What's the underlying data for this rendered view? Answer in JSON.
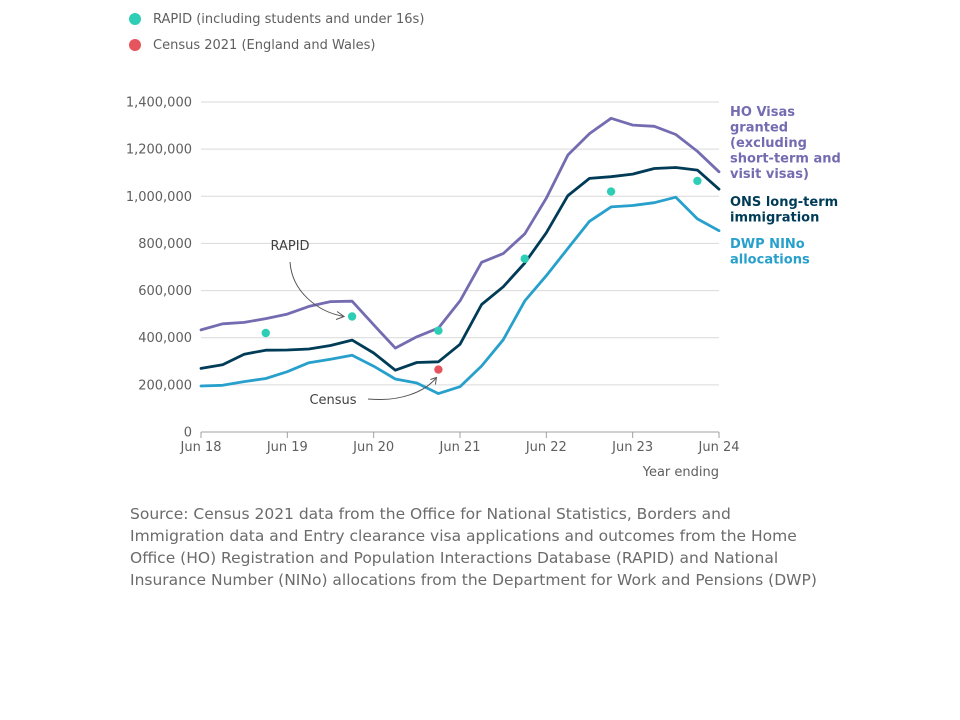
{
  "chart_data": {
    "type": "line",
    "title": "",
    "xlabel": "Year ending",
    "ylabel": "",
    "ylim": [
      0,
      1400000
    ],
    "yticks": [
      0,
      200000,
      400000,
      600000,
      800000,
      1000000,
      1200000,
      1400000
    ],
    "ytick_labels": [
      "0",
      "200,000",
      "400,000",
      "600,000",
      "800,000",
      "1,000,000",
      "1,200,000",
      "1,400,000"
    ],
    "xticks": [
      0,
      8,
      16,
      24,
      32,
      40,
      48
    ],
    "xtick_labels": [
      "Jun 18",
      "Jun 19",
      "Jun 20",
      "Jun 21",
      "Jun 22",
      "Jun 23",
      "Jun 24"
    ],
    "x_period": "quarterly, year ending Jun 18 to Jun 24",
    "grid": true,
    "legend_position": "top-left",
    "series": [
      {
        "name": "HO Visas granted (excluding short-term and visit visas)",
        "label_lines": [
          "HO Visas",
          "granted",
          "(excluding",
          "short-term and",
          "visit visas)"
        ],
        "color": "#746cb1",
        "x": [
          0,
          2,
          4,
          6,
          8,
          10,
          12,
          14,
          16,
          18,
          20,
          22,
          24,
          26,
          28,
          30,
          32,
          34,
          36,
          38,
          40,
          42,
          44,
          46,
          48
        ],
        "values": [
          433000,
          459000,
          465000,
          481000,
          500000,
          533000,
          553000,
          555000,
          455000,
          356000,
          404000,
          441000,
          556000,
          720000,
          757000,
          841000,
          992000,
          1175000,
          1266000,
          1331000,
          1302000,
          1297000,
          1262000,
          1191000,
          1104000
        ]
      },
      {
        "name": "ONS long-term immigration",
        "label_lines": [
          "ONS long-term",
          "immigration"
        ],
        "color": "#003c57",
        "x": [
          0,
          2,
          4,
          6,
          8,
          10,
          12,
          14,
          16,
          18,
          20,
          22,
          24,
          26,
          28,
          30,
          32,
          34,
          36,
          38,
          40,
          42,
          44,
          46,
          48
        ],
        "values": [
          270000,
          285000,
          330000,
          347000,
          348000,
          352000,
          367000,
          390000,
          335000,
          262000,
          295000,
          298000,
          372000,
          541000,
          616000,
          717000,
          845000,
          1003000,
          1076000,
          1083000,
          1094000,
          1118000,
          1122000,
          1111000,
          1030000
        ]
      },
      {
        "name": "DWP NINo allocations",
        "label_lines": [
          "DWP NINo",
          "allocations"
        ],
        "color": "#27a0cc",
        "x": [
          0,
          2,
          4,
          6,
          8,
          10,
          12,
          14,
          16,
          18,
          20,
          22,
          24,
          26,
          28,
          30,
          32,
          34,
          36,
          38,
          40,
          42,
          44,
          46,
          48
        ],
        "values": [
          195000,
          198000,
          214000,
          227000,
          256000,
          294000,
          309000,
          326000,
          279000,
          225000,
          208000,
          163000,
          192000,
          280000,
          391000,
          556000,
          663000,
          779000,
          894000,
          955000,
          961000,
          973000,
          996000,
          904000,
          854000
        ]
      },
      {
        "name": "RAPID (including students and under 16s)",
        "type": "scatter",
        "color": "#2ecdb6",
        "x": [
          6,
          14,
          22,
          30,
          38,
          46
        ],
        "values": [
          420000,
          490000,
          430000,
          735000,
          1020000,
          1065000
        ]
      },
      {
        "name": "Census 2021 (England and Wales)",
        "type": "scatter",
        "color": "#e6545e",
        "x": [
          22
        ],
        "values": [
          265000
        ]
      }
    ],
    "annotations": [
      {
        "text": "RAPID",
        "points_to_series": "RAPID (including students and under 16s)",
        "x": 14,
        "y": 490000
      },
      {
        "text": "Census",
        "points_to_series": "Census 2021 (England and Wales)",
        "x": 22,
        "y": 265000
      }
    ]
  },
  "legend": {
    "items": [
      {
        "label": "RAPID (including students and under 16s)",
        "color": "#2ecdb6"
      },
      {
        "label": "Census 2021 (England and Wales)",
        "color": "#e6545e"
      }
    ]
  },
  "source": "Source: Census 2021 data from the Office for National Statistics, Borders and Immigration data and Entry clearance visa applications and outcomes from the Home Office (HO) Registration and Population Interactions Database (RAPID) and National Insurance Number (NINo) allocations from the Department for Work and Pensions (DWP)"
}
